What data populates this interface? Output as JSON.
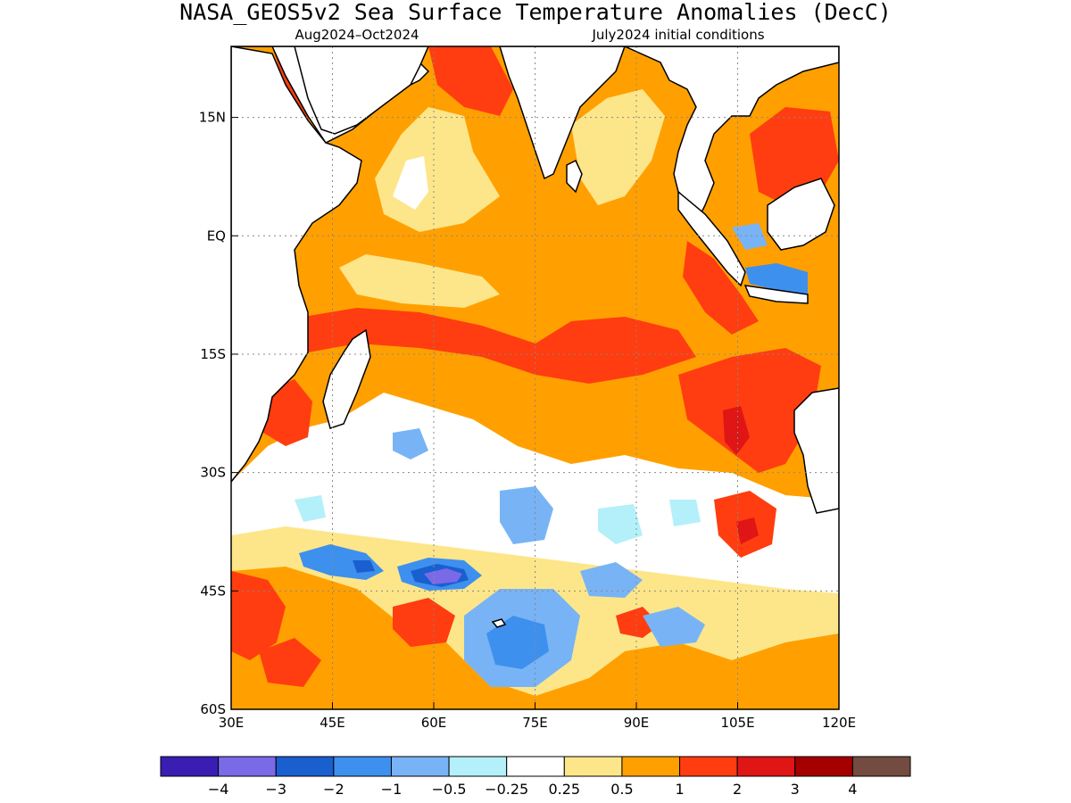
{
  "title": "NASA_GEOS5v2 Sea Surface Temperature Anomalies (DecC)",
  "subtitle_left": "Aug2024–Oct2024",
  "subtitle_right": "July2024 initial conditions",
  "map": {
    "lon_range": [
      30,
      120
    ],
    "lat_range": [
      -60,
      24
    ],
    "x_ticks": [
      {
        "value": 30,
        "label": "30E"
      },
      {
        "value": 45,
        "label": "45E"
      },
      {
        "value": 60,
        "label": "60E"
      },
      {
        "value": 75,
        "label": "75E"
      },
      {
        "value": 90,
        "label": "90E"
      },
      {
        "value": 105,
        "label": "105E"
      },
      {
        "value": 120,
        "label": "120E"
      }
    ],
    "y_ticks": [
      {
        "value": 15,
        "label": "15N"
      },
      {
        "value": 0,
        "label": "EQ"
      },
      {
        "value": -15,
        "label": "15S"
      },
      {
        "value": -30,
        "label": "30S"
      },
      {
        "value": -45,
        "label": "45S"
      },
      {
        "value": -60,
        "label": "60S"
      }
    ],
    "grid": "dotted"
  },
  "colorbar": {
    "colors": [
      "#3a1eb4",
      "#7b6ae8",
      "#1a5fd0",
      "#3e90ee",
      "#78b4f5",
      "#b4f0fa",
      "#ffffff",
      "#fde68a",
      "#ffa000",
      "#ff3d10",
      "#e01515",
      "#a40000",
      "#744b40"
    ],
    "labels": [
      "−4",
      "−3",
      "−2",
      "−1",
      "−0.5",
      "−0.25",
      "0.25",
      "0.5",
      "1",
      "2",
      "3",
      "4"
    ]
  },
  "palette": {
    "land": "#ffffff",
    "coast": "#000000",
    "frame": "#000000"
  },
  "regions": [
    {
      "name": "arabian-sea-orange",
      "level": 8
    },
    {
      "name": "bay-of-bengal-orange",
      "level": 8
    },
    {
      "name": "red-sea-warm",
      "level": 9
    },
    {
      "name": "gulf-warm",
      "level": 9
    },
    {
      "name": "south-china-sea-warm",
      "level": 9
    },
    {
      "name": "indonesia-cool",
      "level": 3
    },
    {
      "name": "south-indian-warm-band",
      "level": 9
    },
    {
      "name": "west-australia-warm",
      "level": 9
    },
    {
      "name": "southern-cool-patch",
      "level": 3
    },
    {
      "name": "southern-very-cool-core",
      "level": 0
    }
  ]
}
